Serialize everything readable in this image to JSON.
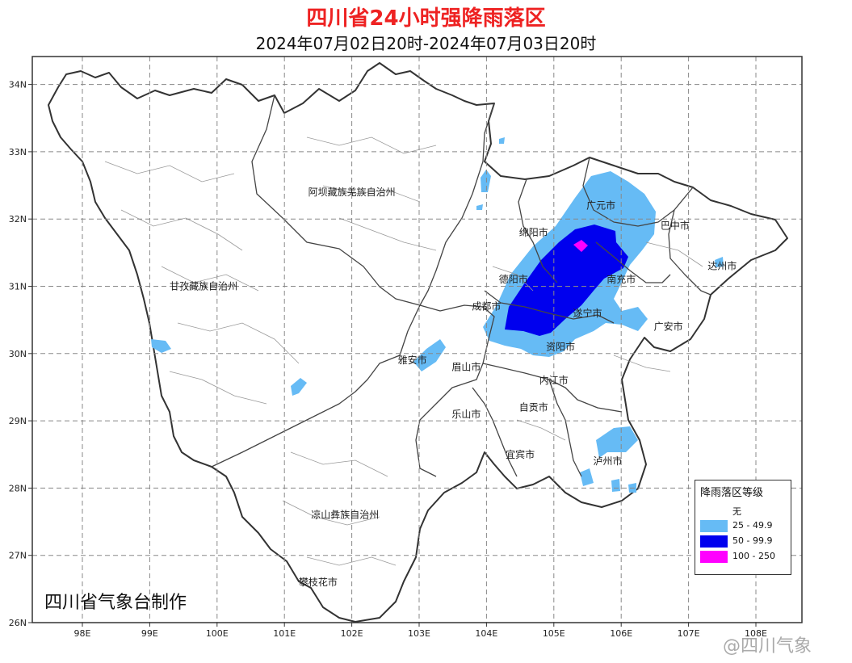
{
  "title": "四川省24小时强降雨落区",
  "subtitle": "2024年07月02日20时-2024年07月03日20时",
  "credit": "四川省气象台制作",
  "watermark": "@四川气象",
  "axes": {
    "lat_ticks": [
      "34N",
      "33N",
      "32N",
      "31N",
      "30N",
      "29N",
      "28N",
      "27N",
      "26N"
    ],
    "lon_ticks": [
      "98E",
      "99E",
      "100E",
      "101E",
      "102E",
      "103E",
      "104E",
      "105E",
      "106E",
      "107E",
      "108E"
    ]
  },
  "places": [
    {
      "name": "阿坝藏族羌族自治州",
      "lon": 102.0,
      "lat": 32.4
    },
    {
      "name": "甘孜藏族自治州",
      "lon": 99.8,
      "lat": 31.0
    },
    {
      "name": "凉山彝族自治州",
      "lon": 101.9,
      "lat": 27.6
    },
    {
      "name": "攀枝花市",
      "lon": 101.5,
      "lat": 26.6
    },
    {
      "name": "广元市",
      "lon": 105.7,
      "lat": 32.2
    },
    {
      "name": "巴中市",
      "lon": 106.8,
      "lat": 31.9
    },
    {
      "name": "绵阳市",
      "lon": 104.7,
      "lat": 31.8
    },
    {
      "name": "达州市",
      "lon": 107.5,
      "lat": 31.3
    },
    {
      "name": "南充市",
      "lon": 106.0,
      "lat": 31.1
    },
    {
      "name": "德阳市",
      "lon": 104.4,
      "lat": 31.1
    },
    {
      "name": "成都市",
      "lon": 104.0,
      "lat": 30.7
    },
    {
      "name": "遂宁市",
      "lon": 105.5,
      "lat": 30.6
    },
    {
      "name": "广安市",
      "lon": 106.7,
      "lat": 30.4
    },
    {
      "name": "资阳市",
      "lon": 105.1,
      "lat": 30.1
    },
    {
      "name": "雅安市",
      "lon": 102.9,
      "lat": 29.9
    },
    {
      "name": "眉山市",
      "lon": 103.7,
      "lat": 29.8
    },
    {
      "name": "内江市",
      "lon": 105.0,
      "lat": 29.6
    },
    {
      "name": "乐山市",
      "lon": 103.7,
      "lat": 29.1
    },
    {
      "name": "自贡市",
      "lon": 104.7,
      "lat": 29.2
    },
    {
      "name": "宜宾市",
      "lon": 104.5,
      "lat": 28.5
    },
    {
      "name": "泸州市",
      "lon": 105.8,
      "lat": 28.4
    }
  ],
  "legend": {
    "title": "降雨落区等级",
    "items": [
      {
        "label": "无",
        "color": "#ffffff"
      },
      {
        "label": "25 - 49.9",
        "color": "#66bbf5"
      },
      {
        "label": "50 - 99.9",
        "color": "#0000ee"
      },
      {
        "label": "100 - 250",
        "color": "#ff00ff"
      }
    ]
  }
}
